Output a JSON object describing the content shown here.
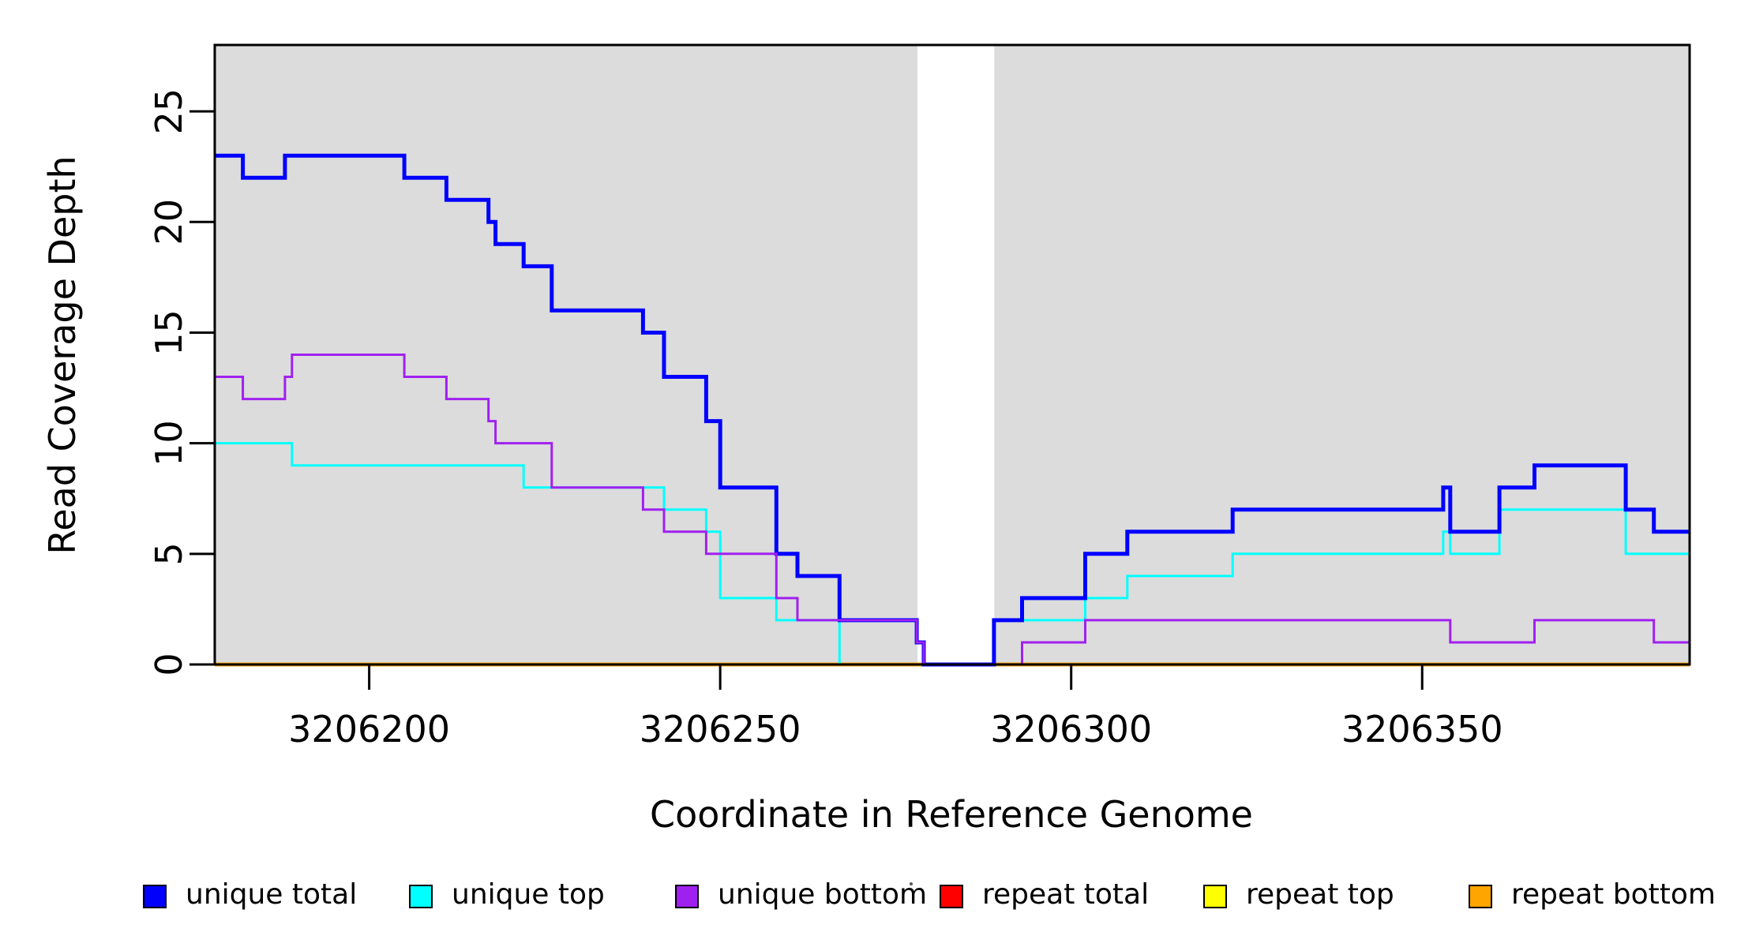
{
  "axes": {
    "x": {
      "title": "Coordinate in Reference Genome",
      "ticks": [
        3206200,
        3206250,
        3206300,
        3206350
      ],
      "tick_labels": [
        "3206200",
        "3206250",
        "3206300",
        "3206350"
      ]
    },
    "y": {
      "title": "Read Coverage Depth",
      "ticks": [
        0,
        5,
        10,
        15,
        20,
        25
      ],
      "tick_labels": [
        "0",
        "5",
        "10",
        "15",
        "20",
        "25"
      ]
    }
  },
  "chart_data": {
    "type": "line",
    "step": "post",
    "title": "",
    "xlabel": "Coordinate in Reference Genome",
    "ylabel": "Read Coverage Depth",
    "x_range": [
      3206178,
      3206388.1
    ],
    "y_range": [
      0,
      28
    ],
    "grid": false,
    "legend_position": "bottom",
    "plot_background": "#ffffff",
    "shaded_regions": [
      {
        "name": "unique-region-left",
        "start": 3206178,
        "end": 3206278.1,
        "color": "#dcdcdc"
      },
      {
        "name": "unique-region-right",
        "start": 3206289.05,
        "end": 3206388.1,
        "color": "#dcdcdc"
      }
    ],
    "series": [
      {
        "name": "unique total",
        "color": "#0000ff",
        "points": [
          [
            3206178,
            23
          ],
          [
            3206182,
            22
          ],
          [
            3206188,
            23
          ],
          [
            3206205,
            22
          ],
          [
            3206211,
            21
          ],
          [
            3206217,
            20
          ],
          [
            3206218,
            19
          ],
          [
            3206222,
            18
          ],
          [
            3206226,
            16
          ],
          [
            3206239,
            15
          ],
          [
            3206242,
            13
          ],
          [
            3206248,
            11
          ],
          [
            3206250,
            8
          ],
          [
            3206258,
            5
          ],
          [
            3206261,
            4
          ],
          [
            3206267,
            2
          ],
          [
            3206278,
            1
          ],
          [
            3206279,
            0
          ],
          [
            3206289,
            2
          ],
          [
            3206293,
            3
          ],
          [
            3206302,
            5
          ],
          [
            3206308,
            6
          ],
          [
            3206323,
            7
          ],
          [
            3206353,
            8
          ],
          [
            3206354,
            6
          ],
          [
            3206361,
            8
          ],
          [
            3206366,
            9
          ],
          [
            3206379,
            7
          ],
          [
            3206383,
            6
          ]
        ]
      },
      {
        "name": "unique top",
        "color": "#00ffff",
        "points": [
          [
            3206178,
            10
          ],
          [
            3206189,
            9
          ],
          [
            3206222,
            8
          ],
          [
            3206242,
            7
          ],
          [
            3206248,
            6
          ],
          [
            3206250,
            3
          ],
          [
            3206258,
            2
          ],
          [
            3206267,
            0
          ],
          [
            3206289,
            2
          ],
          [
            3206302,
            3
          ],
          [
            3206308,
            4
          ],
          [
            3206323,
            5
          ],
          [
            3206353,
            6
          ],
          [
            3206354,
            5
          ],
          [
            3206361,
            7
          ],
          [
            3206379,
            5
          ]
        ]
      },
      {
        "name": "unique bottom",
        "color": "#a020f0",
        "points": [
          [
            3206178,
            13
          ],
          [
            3206182,
            12
          ],
          [
            3206188,
            13
          ],
          [
            3206189,
            14
          ],
          [
            3206205,
            13
          ],
          [
            3206211,
            12
          ],
          [
            3206217,
            11
          ],
          [
            3206218,
            10
          ],
          [
            3206226,
            8
          ],
          [
            3206239,
            7
          ],
          [
            3206242,
            6
          ],
          [
            3206248,
            5
          ],
          [
            3206258,
            3
          ],
          [
            3206261,
            2
          ],
          [
            3206278,
            1
          ],
          [
            3206279,
            0
          ],
          [
            3206293,
            1
          ],
          [
            3206302,
            2
          ],
          [
            3206354,
            1
          ],
          [
            3206366,
            2
          ],
          [
            3206383,
            1
          ]
        ]
      },
      {
        "name": "repeat total",
        "color": "#ff0000",
        "points": [
          [
            3206178,
            0
          ]
        ]
      },
      {
        "name": "repeat top",
        "color": "#ffff00",
        "points": [
          [
            3206178,
            0
          ]
        ]
      },
      {
        "name": "repeat bottom",
        "color": "#ffa500",
        "points": [
          [
            3206178,
            0
          ]
        ]
      }
    ]
  },
  "legend": {
    "items": [
      {
        "label": "unique total",
        "color": "#0000ff"
      },
      {
        "label": "unique top",
        "color": "#00ffff"
      },
      {
        "label": "unique bottom",
        "color": "#a020f0"
      },
      {
        "label": "repeat total",
        "color": "#ff0000"
      },
      {
        "label": "repeat top",
        "color": "#ffff00"
      },
      {
        "label": "repeat bottom",
        "color": "#ffa500"
      }
    ]
  }
}
